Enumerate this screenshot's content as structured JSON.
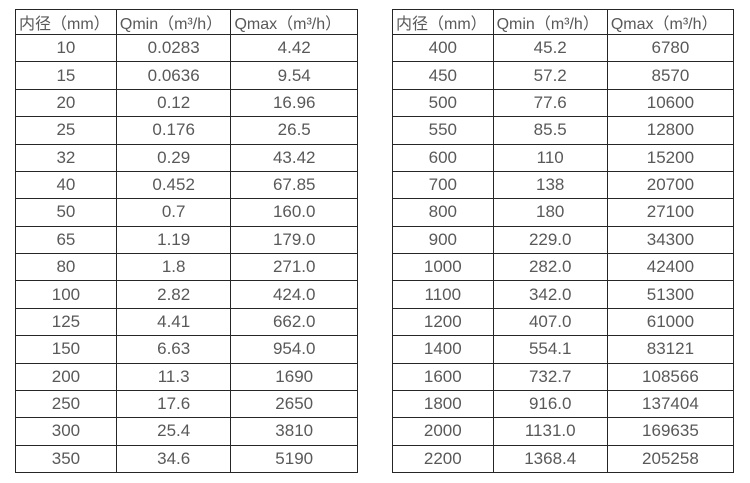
{
  "colors": {
    "background": "#ffffff",
    "border": "#262626",
    "text": "#595959"
  },
  "chart_data": [
    {
      "type": "table",
      "title": "",
      "headers": [
        "内径（mm）",
        "Qmin（m³/h）",
        "Qmax（m³/h）"
      ],
      "rows": [
        [
          "10",
          "0.0283",
          "4.42"
        ],
        [
          "15",
          "0.0636",
          "9.54"
        ],
        [
          "20",
          "0.12",
          "16.96"
        ],
        [
          "25",
          "0.176",
          "26.5"
        ],
        [
          "32",
          "0.29",
          "43.42"
        ],
        [
          "40",
          "0.452",
          "67.85"
        ],
        [
          "50",
          "0.7",
          "160.0"
        ],
        [
          "65",
          "1.19",
          "179.0"
        ],
        [
          "80",
          "1.8",
          "271.0"
        ],
        [
          "100",
          "2.82",
          "424.0"
        ],
        [
          "125",
          "4.41",
          "662.0"
        ],
        [
          "150",
          "6.63",
          "954.0"
        ],
        [
          "200",
          "11.3",
          "1690"
        ],
        [
          "250",
          "17.6",
          "2650"
        ],
        [
          "300",
          "25.4",
          "3810"
        ],
        [
          "350",
          "34.6",
          "5190"
        ]
      ]
    },
    {
      "type": "table",
      "title": "",
      "headers": [
        "内径（mm）",
        "Qmin（m³/h）",
        "Qmax（m³/h）"
      ],
      "rows": [
        [
          "400",
          "45.2",
          "6780"
        ],
        [
          "450",
          "57.2",
          "8570"
        ],
        [
          "500",
          "77.6",
          "10600"
        ],
        [
          "550",
          "85.5",
          "12800"
        ],
        [
          "600",
          "110",
          "15200"
        ],
        [
          "700",
          "138",
          "20700"
        ],
        [
          "800",
          "180",
          "27100"
        ],
        [
          "900",
          "229.0",
          "34300"
        ],
        [
          "1000",
          "282.0",
          "42400"
        ],
        [
          "1100",
          "342.0",
          "51300"
        ],
        [
          "1200",
          "407.0",
          "61000"
        ],
        [
          "1400",
          "554.1",
          "83121"
        ],
        [
          "1600",
          "732.7",
          "108566"
        ],
        [
          "1800",
          "916.0",
          "137404"
        ],
        [
          "2000",
          "1131.0",
          "169635"
        ],
        [
          "2200",
          "1368.4",
          "205258"
        ]
      ]
    }
  ]
}
